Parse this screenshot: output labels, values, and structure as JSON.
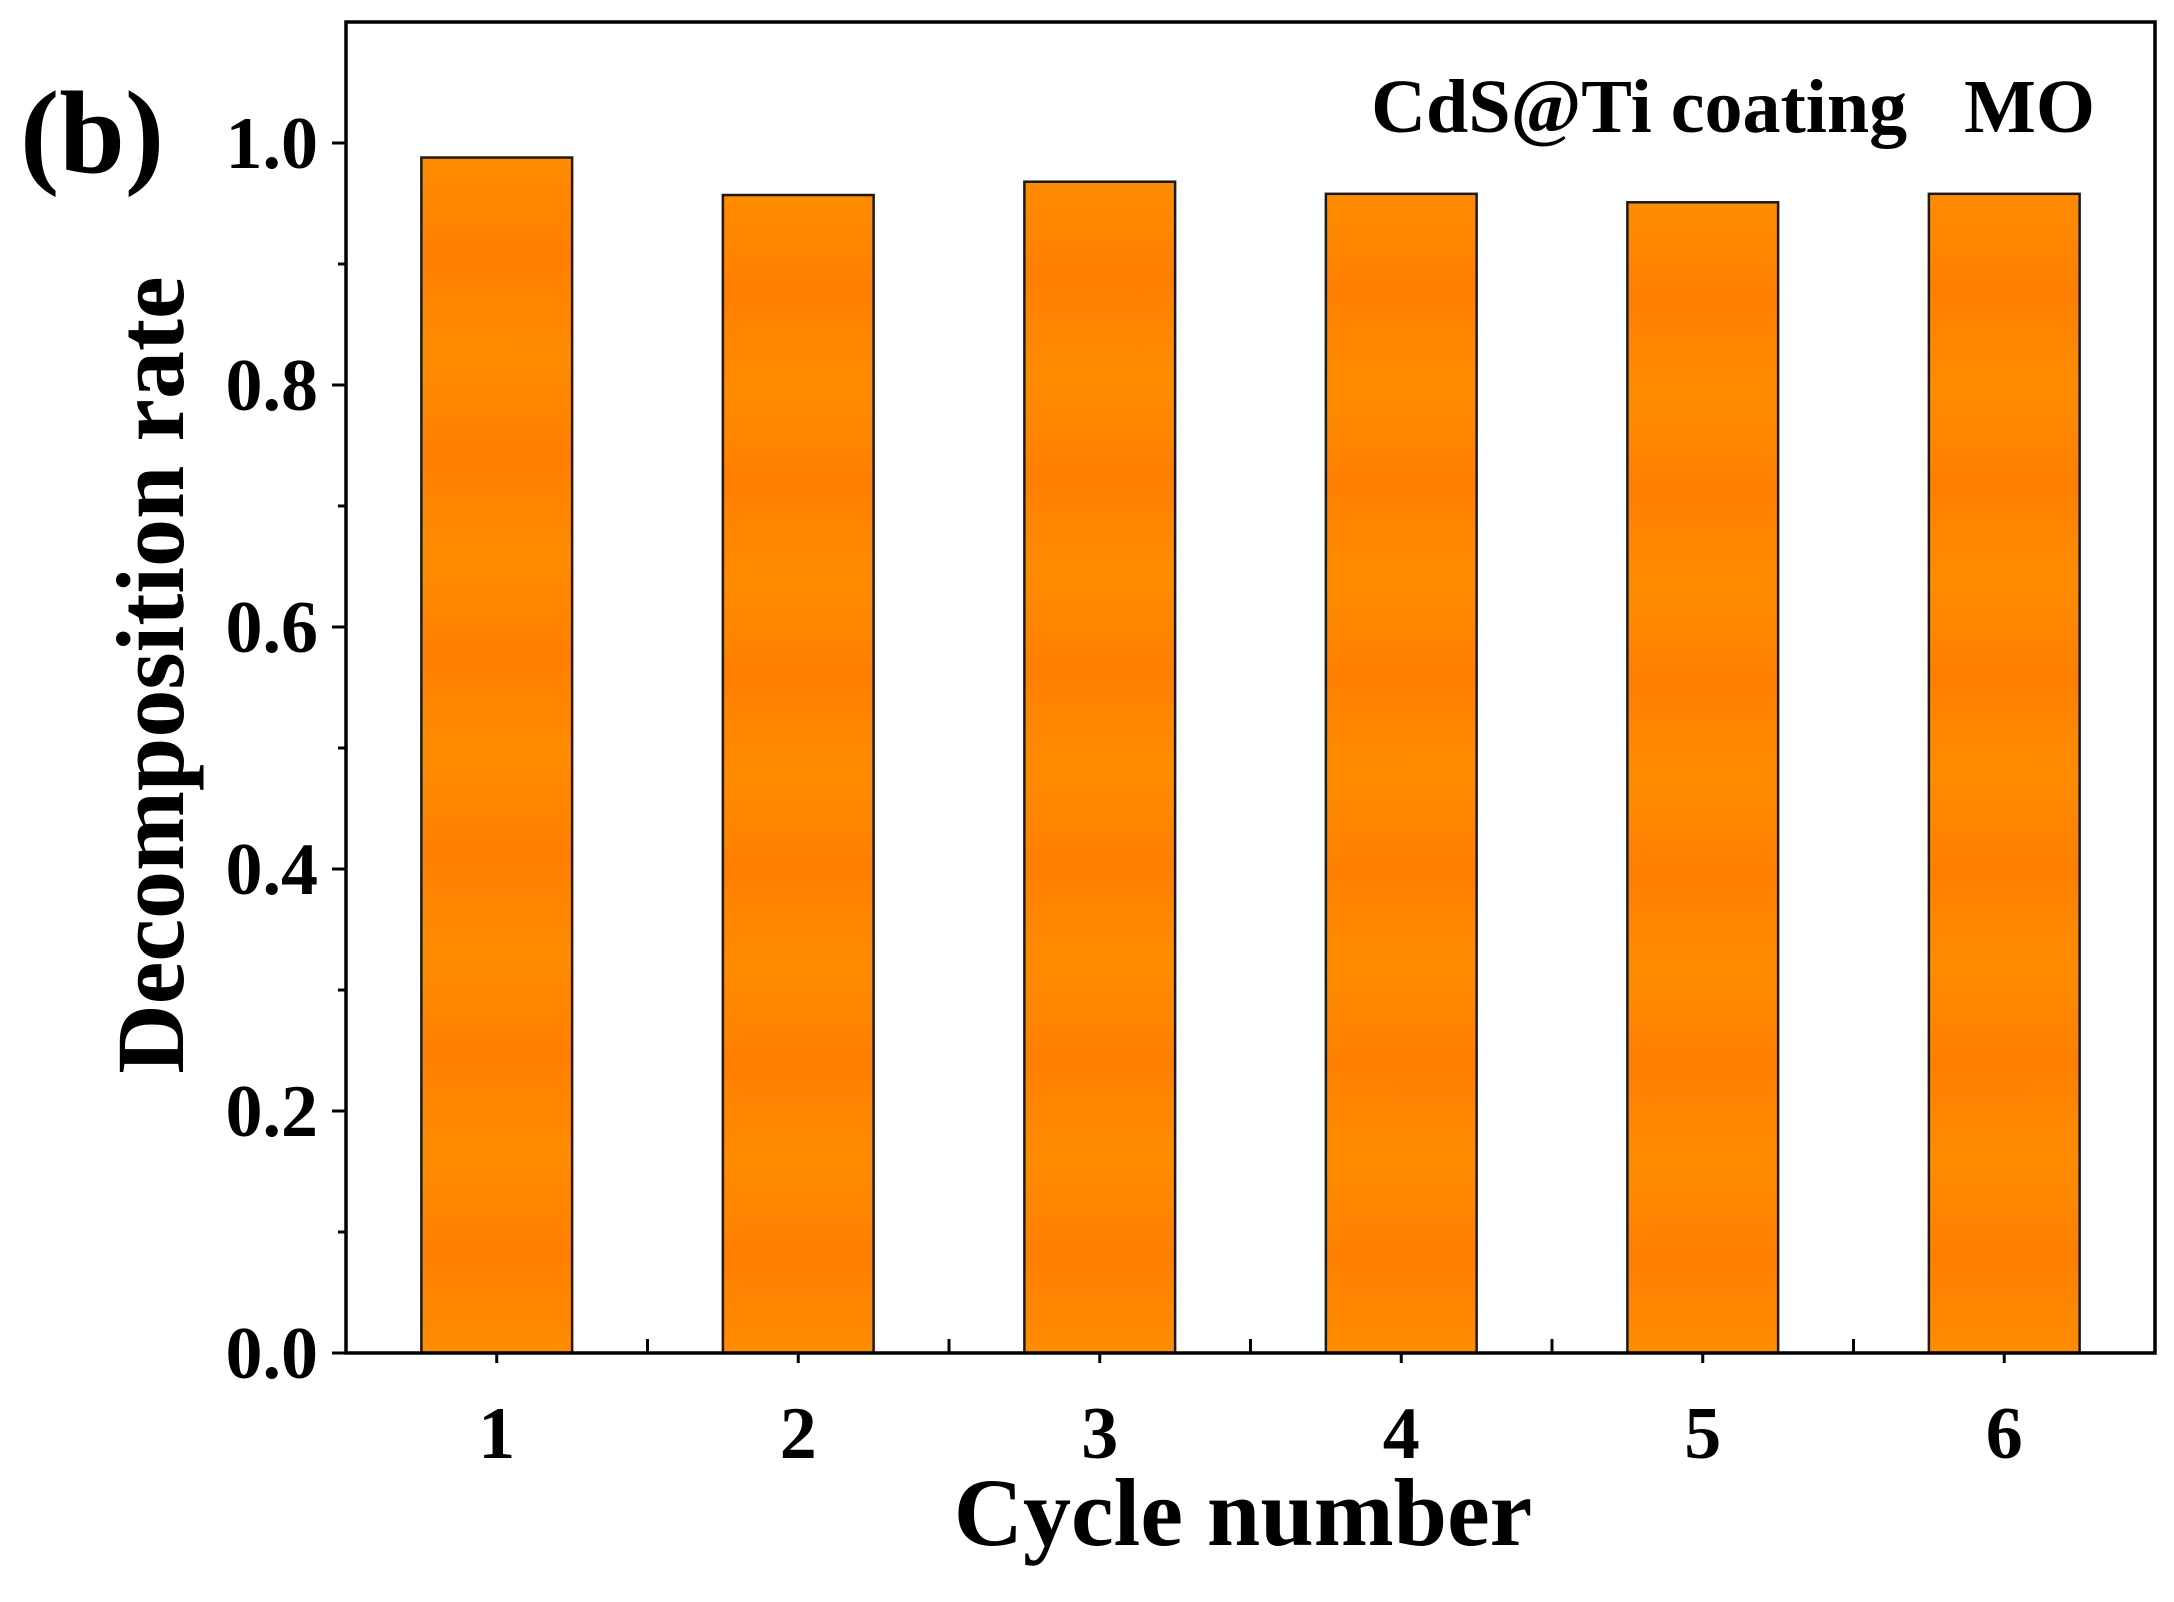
{
  "panel_label": "(b)",
  "colors": {
    "bar_fill": "#FF8C00",
    "bar_fill_dark": "#FF7F00",
    "bar_stroke": "#1a1a1a",
    "axis": "#000000"
  },
  "chart_data": {
    "type": "bar",
    "title": "",
    "annotation": "CdS@Ti coating   MO",
    "xlabel": "Cycle number",
    "ylabel": "Decomposition rate",
    "categories": [
      "1",
      "2",
      "3",
      "4",
      "5",
      "6"
    ],
    "values": [
      0.988,
      0.957,
      0.968,
      0.958,
      0.951,
      0.958
    ],
    "ylim": [
      0,
      1.1
    ],
    "yticks": [
      "0.0",
      "0.2",
      "0.4",
      "0.6",
      "0.8",
      "1.0"
    ],
    "ytick_values": [
      0,
      0.2,
      0.4,
      0.6,
      0.8,
      1.0
    ],
    "grid": false,
    "legend": "none"
  }
}
